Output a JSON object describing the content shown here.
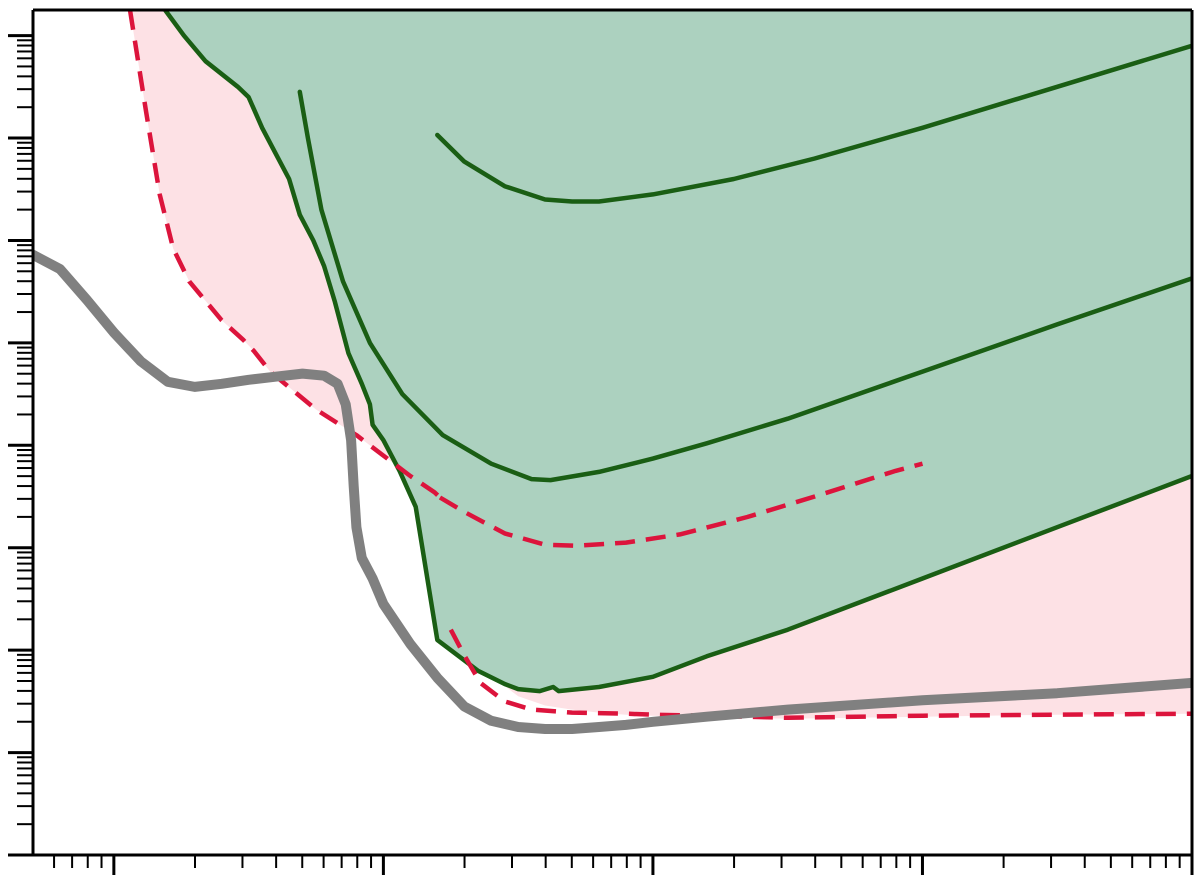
{
  "chart_data": {
    "type": "line",
    "title": "",
    "xlabel": "",
    "ylabel": "",
    "x_scale": "log",
    "y_scale": "log",
    "xlim_decades": [
      -0.3,
      4.0
    ],
    "ylim_decades": [
      0.0,
      8.25
    ],
    "tick_labels_shown": false,
    "grid": false,
    "legend": "none",
    "colors": {
      "green_fill": "#acd1bf",
      "green_line": "#1a5e14",
      "pink_fill": "#fde1e5",
      "red_dashed": "#dc143c",
      "gray_line": "#808080",
      "axis": "#000000"
    },
    "series": [
      {
        "role": "green-envelope",
        "style": "filled-solid",
        "points": [
          [
            0.19,
            8.25
          ],
          [
            0.26,
            8.0
          ],
          [
            0.34,
            7.75
          ],
          [
            0.46,
            7.5
          ],
          [
            0.5,
            7.4
          ],
          [
            0.55,
            7.1
          ],
          [
            0.6,
            6.85
          ],
          [
            0.65,
            6.6
          ],
          [
            0.69,
            6.25
          ],
          [
            0.74,
            6.0
          ],
          [
            0.78,
            5.75
          ],
          [
            0.82,
            5.4
          ],
          [
            0.87,
            4.9
          ],
          [
            0.92,
            4.6
          ],
          [
            0.95,
            4.4
          ],
          [
            0.96,
            4.2
          ],
          [
            1.0,
            4.05
          ],
          [
            1.06,
            3.75
          ],
          [
            1.12,
            3.4
          ],
          [
            1.2,
            2.1
          ],
          [
            1.29,
            1.92
          ],
          [
            1.35,
            1.8
          ],
          [
            1.45,
            1.67
          ],
          [
            1.5,
            1.62
          ],
          [
            1.58,
            1.6
          ],
          [
            1.63,
            1.64
          ],
          [
            1.65,
            1.6
          ],
          [
            1.8,
            1.64
          ],
          [
            2.0,
            1.74
          ],
          [
            2.2,
            1.94
          ],
          [
            2.5,
            2.2
          ],
          [
            3.0,
            2.7
          ],
          [
            3.5,
            3.2
          ],
          [
            4.0,
            3.7
          ]
        ]
      },
      {
        "role": "green-middle",
        "style": "solid",
        "points": [
          [
            0.69,
            7.45
          ],
          [
            0.72,
            7.0
          ],
          [
            0.77,
            6.3
          ],
          [
            0.85,
            5.6
          ],
          [
            0.95,
            5.0
          ],
          [
            1.07,
            4.5
          ],
          [
            1.22,
            4.1
          ],
          [
            1.4,
            3.82
          ],
          [
            1.55,
            3.67
          ],
          [
            1.62,
            3.66
          ],
          [
            1.8,
            3.74
          ],
          [
            2.0,
            3.87
          ],
          [
            2.2,
            4.02
          ],
          [
            2.5,
            4.26
          ],
          [
            3.0,
            4.72
          ],
          [
            3.5,
            5.18
          ],
          [
            4.0,
            5.63
          ]
        ]
      },
      {
        "role": "green-upper",
        "style": "solid",
        "points": [
          [
            1.2,
            7.03
          ],
          [
            1.3,
            6.77
          ],
          [
            1.45,
            6.53
          ],
          [
            1.6,
            6.4
          ],
          [
            1.7,
            6.38
          ],
          [
            1.8,
            6.38
          ],
          [
            2.0,
            6.45
          ],
          [
            2.3,
            6.6
          ],
          [
            2.6,
            6.8
          ],
          [
            3.0,
            7.1
          ],
          [
            3.5,
            7.5
          ],
          [
            4.0,
            7.9
          ]
        ]
      },
      {
        "role": "pink-band",
        "style": "filled",
        "upper": [
          [
            0.06,
            8.25
          ],
          [
            0.12,
            7.25
          ],
          [
            0.17,
            6.45
          ],
          [
            0.22,
            5.92
          ],
          [
            0.28,
            5.6
          ],
          [
            0.4,
            5.22
          ],
          [
            0.48,
            5.03
          ],
          [
            0.52,
            4.92
          ],
          [
            0.58,
            4.72
          ],
          [
            0.75,
            4.35
          ],
          [
            0.9,
            4.1
          ],
          [
            1.1,
            3.7
          ],
          [
            1.19,
            3.54
          ],
          [
            1.21,
            3.49
          ]
        ],
        "lower": [
          [
            1.21,
            3.49
          ],
          [
            1.28,
            3.2
          ],
          [
            1.3,
            2.97
          ],
          [
            1.33,
            2.6
          ],
          [
            1.36,
            2.3
          ],
          [
            1.4,
            1.92
          ],
          [
            1.45,
            1.65
          ],
          [
            1.5,
            1.55
          ],
          [
            1.6,
            1.46
          ],
          [
            1.7,
            1.42
          ],
          [
            1.8,
            1.39
          ],
          [
            1.9,
            1.37
          ],
          [
            2.0,
            1.36
          ],
          [
            2.2,
            1.35
          ],
          [
            2.5,
            1.33
          ],
          [
            3.0,
            1.35
          ],
          [
            3.5,
            1.37
          ],
          [
            4.0,
            1.38
          ]
        ]
      },
      {
        "role": "red-dashed-left",
        "style": "dashed",
        "points": [
          [
            0.06,
            8.25
          ],
          [
            0.12,
            7.25
          ],
          [
            0.17,
            6.45
          ],
          [
            0.22,
            5.92
          ],
          [
            0.28,
            5.6
          ],
          [
            0.4,
            5.22
          ],
          [
            0.48,
            5.03
          ],
          [
            0.52,
            4.92
          ],
          [
            0.58,
            4.72
          ],
          [
            0.75,
            4.35
          ],
          [
            0.9,
            4.1
          ],
          [
            1.1,
            3.7
          ],
          [
            1.19,
            3.54
          ],
          [
            1.21,
            3.49
          ]
        ]
      },
      {
        "role": "red-dashed-branch",
        "style": "dashed",
        "points": [
          [
            1.21,
            3.49
          ],
          [
            1.3,
            3.35
          ],
          [
            1.45,
            3.14
          ],
          [
            1.6,
            3.03
          ],
          [
            1.72,
            3.02
          ],
          [
            1.9,
            3.05
          ],
          [
            2.1,
            3.13
          ],
          [
            2.35,
            3.3
          ],
          [
            2.6,
            3.5
          ],
          [
            2.9,
            3.75
          ],
          [
            3.0,
            3.82
          ]
        ]
      },
      {
        "role": "red-dashed-right",
        "style": "dashed",
        "points": [
          [
            1.25,
            2.2
          ],
          [
            1.3,
            1.95
          ],
          [
            1.36,
            1.68
          ],
          [
            1.45,
            1.5
          ],
          [
            1.55,
            1.42
          ],
          [
            1.7,
            1.39
          ],
          [
            1.9,
            1.38
          ],
          [
            2.0,
            1.37
          ],
          [
            2.2,
            1.36
          ],
          [
            2.5,
            1.34
          ],
          [
            3.0,
            1.36
          ],
          [
            3.5,
            1.37
          ],
          [
            4.0,
            1.38
          ]
        ]
      },
      {
        "role": "gray-thick",
        "style": "solid-thick",
        "points": [
          [
            -0.3,
            5.86
          ],
          [
            -0.2,
            5.72
          ],
          [
            -0.1,
            5.42
          ],
          [
            0.0,
            5.1
          ],
          [
            0.1,
            4.82
          ],
          [
            0.2,
            4.62
          ],
          [
            0.3,
            4.57
          ],
          [
            0.4,
            4.6
          ],
          [
            0.5,
            4.64
          ],
          [
            0.6,
            4.67
          ],
          [
            0.7,
            4.7
          ],
          [
            0.78,
            4.68
          ],
          [
            0.83,
            4.6
          ],
          [
            0.86,
            4.4
          ],
          [
            0.88,
            4.05
          ],
          [
            0.89,
            3.6
          ],
          [
            0.9,
            3.2
          ],
          [
            0.92,
            2.9
          ],
          [
            0.96,
            2.7
          ],
          [
            1.0,
            2.45
          ],
          [
            1.1,
            2.06
          ],
          [
            1.2,
            1.73
          ],
          [
            1.3,
            1.45
          ],
          [
            1.4,
            1.31
          ],
          [
            1.5,
            1.25
          ],
          [
            1.6,
            1.23
          ],
          [
            1.7,
            1.23
          ],
          [
            1.8,
            1.25
          ],
          [
            1.9,
            1.27
          ],
          [
            2.0,
            1.3
          ],
          [
            2.2,
            1.35
          ],
          [
            2.5,
            1.42
          ],
          [
            3.0,
            1.51
          ],
          [
            3.5,
            1.58
          ],
          [
            4.0,
            1.68
          ]
        ]
      }
    ]
  }
}
